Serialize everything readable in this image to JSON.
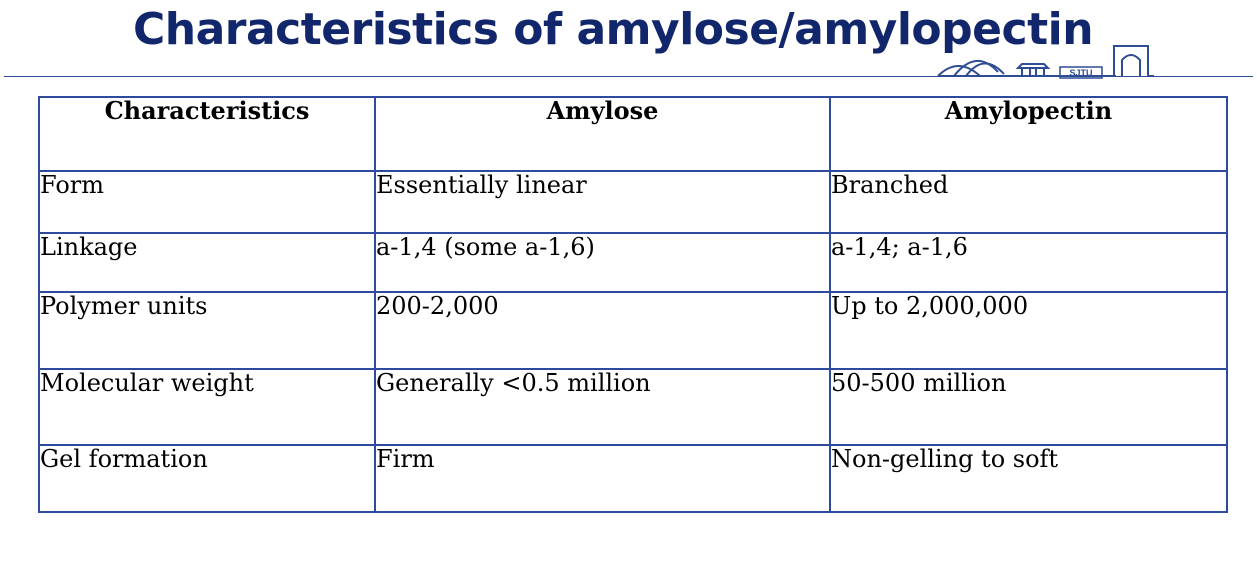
{
  "slide": {
    "title": "Characteristics of amylose/amylopectin"
  },
  "logo": {
    "text": "SJTU"
  },
  "table": {
    "headers": [
      "Characteristics",
      "Amylose",
      "Amylopectin"
    ],
    "rows": [
      [
        "Form",
        "Essentially linear",
        "Branched"
      ],
      [
        "Linkage",
        "a-1,4 (some a-1,6)",
        "a-1,4; a-1,6"
      ],
      [
        "Polymer units",
        "200-2,000",
        "Up to 2,000,000"
      ],
      [
        "Molecular weight",
        "Generally <0.5 million",
        "50-500 million"
      ],
      [
        "Gel formation",
        "Firm",
        "Non-gelling to soft"
      ]
    ]
  },
  "colors": {
    "title": "#12266b",
    "border": "#2e4a9e",
    "rule": "#2e4c96"
  }
}
